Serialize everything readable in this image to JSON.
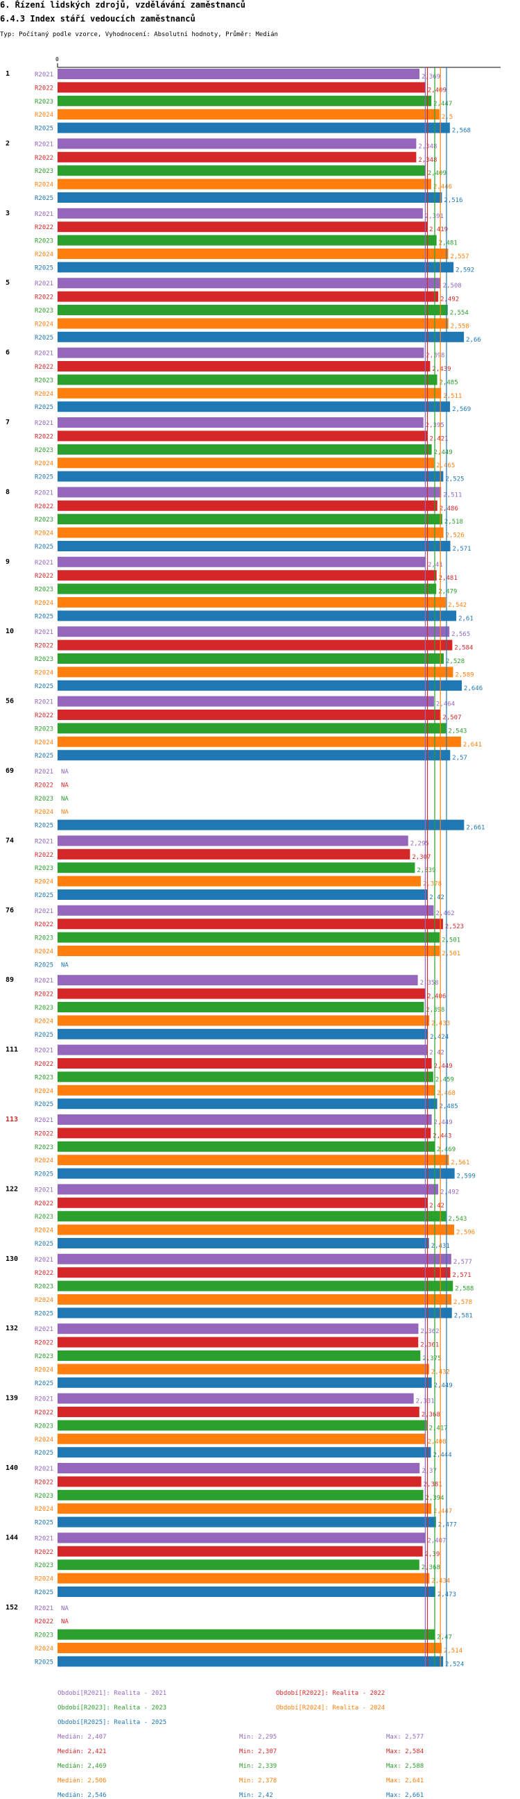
{
  "header": {
    "title": "6. Řízení lidských zdrojů, vzdělávání zaměstnanců",
    "subtitle": "6.4.3 Index stáří vedoucích zaměstnanců",
    "meta": "Typ: Počítaný podle vzorce, Vyhodnocení: Absolutní hodnoty, Průměr: Medián"
  },
  "colors": {
    "R2021": "#9467bd",
    "R2022": "#d62728",
    "R2023": "#2ca02c",
    "R2024": "#ff7f0e",
    "R2025": "#1f77b4",
    "highlight_label": "#d62728"
  },
  "chart_data": {
    "type": "bar",
    "orientation": "horizontal",
    "x_axis_zero_label": "0",
    "xlim": [
      0,
      2.9
    ],
    "na_label": "NA",
    "series_names": [
      "R2021",
      "R2022",
      "R2023",
      "R2024",
      "R2025"
    ],
    "groups": [
      {
        "label": "1",
        "highlight": false,
        "values": [
          "2,369",
          "2,409",
          "2,447",
          "2,5",
          "2,568"
        ]
      },
      {
        "label": "2",
        "highlight": false,
        "values": [
          "2,348",
          "2,348",
          "2,409",
          "2,446",
          "2,516"
        ]
      },
      {
        "label": "3",
        "highlight": false,
        "values": [
          "2,391",
          "2,419",
          "2,481",
          "2,557",
          "2,592"
        ]
      },
      {
        "label": "5",
        "highlight": false,
        "values": [
          "2,508",
          "2,492",
          "2,554",
          "2,558",
          "2,66"
        ]
      },
      {
        "label": "6",
        "highlight": false,
        "values": [
          "2,398",
          "2,439",
          "2,485",
          "2,511",
          "2,569"
        ]
      },
      {
        "label": "7",
        "highlight": false,
        "values": [
          "2,395",
          "2,421",
          "2,449",
          "2,465",
          "2,525"
        ]
      },
      {
        "label": "8",
        "highlight": false,
        "values": [
          "2,511",
          "2,486",
          "2,518",
          "2,526",
          "2,571"
        ]
      },
      {
        "label": "9",
        "highlight": false,
        "values": [
          "2,41",
          "2,481",
          "2,479",
          "2,542",
          "2,61"
        ]
      },
      {
        "label": "10",
        "highlight": false,
        "values": [
          "2,565",
          "2,584",
          "2,528",
          "2,589",
          "2,646"
        ]
      },
      {
        "label": "56",
        "highlight": false,
        "values": [
          "2,464",
          "2,507",
          "2,543",
          "2,641",
          "2,57"
        ]
      },
      {
        "label": "69",
        "highlight": false,
        "values": [
          null,
          null,
          null,
          null,
          "2,661"
        ]
      },
      {
        "label": "74",
        "highlight": false,
        "values": [
          "2,295",
          "2,307",
          "2,339",
          "2,378",
          "2,42"
        ]
      },
      {
        "label": "76",
        "highlight": false,
        "values": [
          "2,462",
          "2,523",
          "2,501",
          "2,501",
          null
        ]
      },
      {
        "label": "89",
        "highlight": false,
        "values": [
          "2,358",
          "2,406",
          "2,398",
          "2,433",
          "2,424"
        ]
      },
      {
        "label": "111",
        "highlight": false,
        "values": [
          "2,42",
          "2,449",
          "2,459",
          "2,468",
          "2,485"
        ]
      },
      {
        "label": "113",
        "highlight": true,
        "values": [
          "2,449",
          "2,443",
          "2,469",
          "2,561",
          "2,599"
        ]
      },
      {
        "label": "122",
        "highlight": false,
        "values": [
          "2,492",
          "2,42",
          "2,543",
          "2,596",
          "2,431"
        ]
      },
      {
        "label": "130",
        "highlight": false,
        "values": [
          "2,577",
          "2,571",
          "2,588",
          "2,578",
          "2,581"
        ]
      },
      {
        "label": "132",
        "highlight": false,
        "values": [
          "2,362",
          "2,361",
          "2,375",
          "2,432",
          "2,449"
        ]
      },
      {
        "label": "139",
        "highlight": false,
        "values": [
          "2,331",
          "2,368",
          "2,417",
          "2,408",
          "2,444"
        ]
      },
      {
        "label": "140",
        "highlight": false,
        "values": [
          "2,37",
          "2,381",
          "2,394",
          "2,447",
          "2,477"
        ]
      },
      {
        "label": "144",
        "highlight": false,
        "values": [
          "2,407",
          "2,39",
          "2,368",
          "2,434",
          "2,473"
        ]
      },
      {
        "label": "152",
        "highlight": false,
        "values": [
          null,
          null,
          "2,47",
          "2,514",
          "2,524"
        ]
      }
    ],
    "median_lines": [
      "2,407",
      "2,421",
      "2,469",
      "2,506",
      "2,546"
    ]
  },
  "legend": [
    {
      "series": "R2021",
      "text": "Období[R2021]: Realita - 2021"
    },
    {
      "series": "R2022",
      "text": "Období[R2022]: Realita - 2022"
    },
    {
      "series": "R2023",
      "text": "Období[R2023]: Realita - 2023"
    },
    {
      "series": "R2024",
      "text": "Období[R2024]: Realita - 2024"
    },
    {
      "series": "R2025",
      "text": "Období[R2025]: Realita - 2025"
    }
  ],
  "stats": [
    {
      "series": "R2021",
      "median": "Medián: 2,407",
      "min": "Min: 2,295",
      "max": "Max: 2,577"
    },
    {
      "series": "R2022",
      "median": "Medián: 2,421",
      "min": "Min: 2,307",
      "max": "Max: 2,584"
    },
    {
      "series": "R2023",
      "median": "Medián: 2,469",
      "min": "Min: 2,339",
      "max": "Max: 2,588"
    },
    {
      "series": "R2024",
      "median": "Medián: 2,506",
      "min": "Min: 2,378",
      "max": "Max: 2,641"
    },
    {
      "series": "R2025",
      "median": "Medián: 2,546",
      "min": "Min: 2,42",
      "max": "Max: 2,661"
    }
  ]
}
